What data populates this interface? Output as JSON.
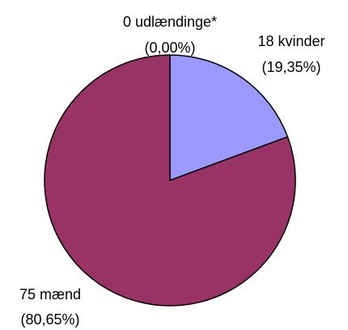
{
  "chart_data": {
    "type": "pie",
    "categories": [
      "udlændinge*",
      "kvinder",
      "mænd"
    ],
    "values": [
      0,
      18,
      75
    ],
    "value_labels": [
      "0 udlændinge*",
      "18 kvinder",
      "75 mænd"
    ],
    "percent_labels": [
      "(0,00%)",
      "(19,35%)",
      "(80,65%)"
    ],
    "colors": [
      "#ffffcc",
      "#9999ff",
      "#993366"
    ]
  }
}
